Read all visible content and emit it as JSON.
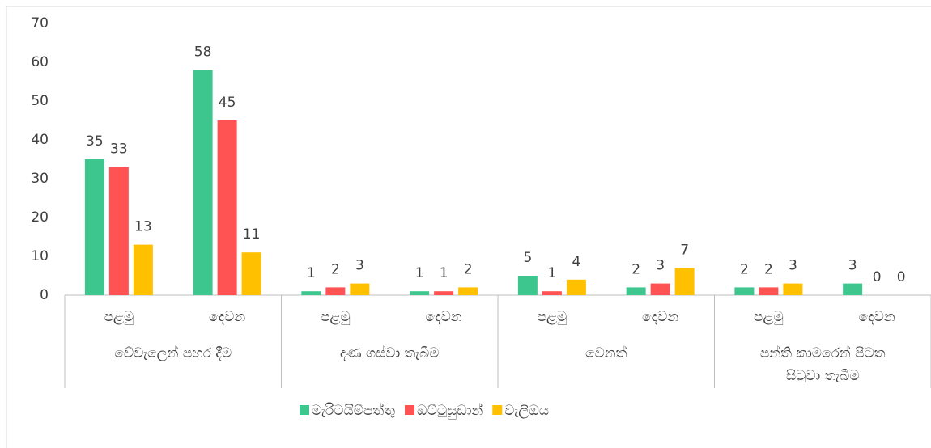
{
  "chart_data": {
    "type": "bar",
    "categories": [
      "පළමු",
      "දෙවන",
      "පළමු",
      "දෙවන",
      "පළමු",
      "දෙවන",
      "පළමු",
      "දෙවන"
    ],
    "groups": [
      [
        "වේවැලෙන් පහර දීම"
      ],
      [
        "දණ ගස්වා තැබීම"
      ],
      [
        "වෙනත්"
      ],
      [
        "පන්ති කාමරෙන් පිටත",
        "සිටුවා තැබීම"
      ]
    ],
    "series": [
      {
        "name": "මැරිටයිම්පත්තු",
        "color": "#3dc78f",
        "values": [
          35,
          58,
          1,
          1,
          5,
          2,
          2,
          3
        ]
      },
      {
        "name": "ඔට්ටුසුඩාන්",
        "color": "#ff5252",
        "values": [
          33,
          45,
          2,
          1,
          1,
          3,
          2,
          0
        ]
      },
      {
        "name": "වැලිඔය",
        "color": "#ffc000",
        "values": [
          13,
          11,
          3,
          2,
          4,
          7,
          3,
          0
        ]
      }
    ],
    "ylim": [
      0,
      70
    ],
    "yticks": [
      0,
      10,
      20,
      30,
      40,
      50,
      60,
      70
    ],
    "grid": false,
    "legend": "bottom"
  }
}
